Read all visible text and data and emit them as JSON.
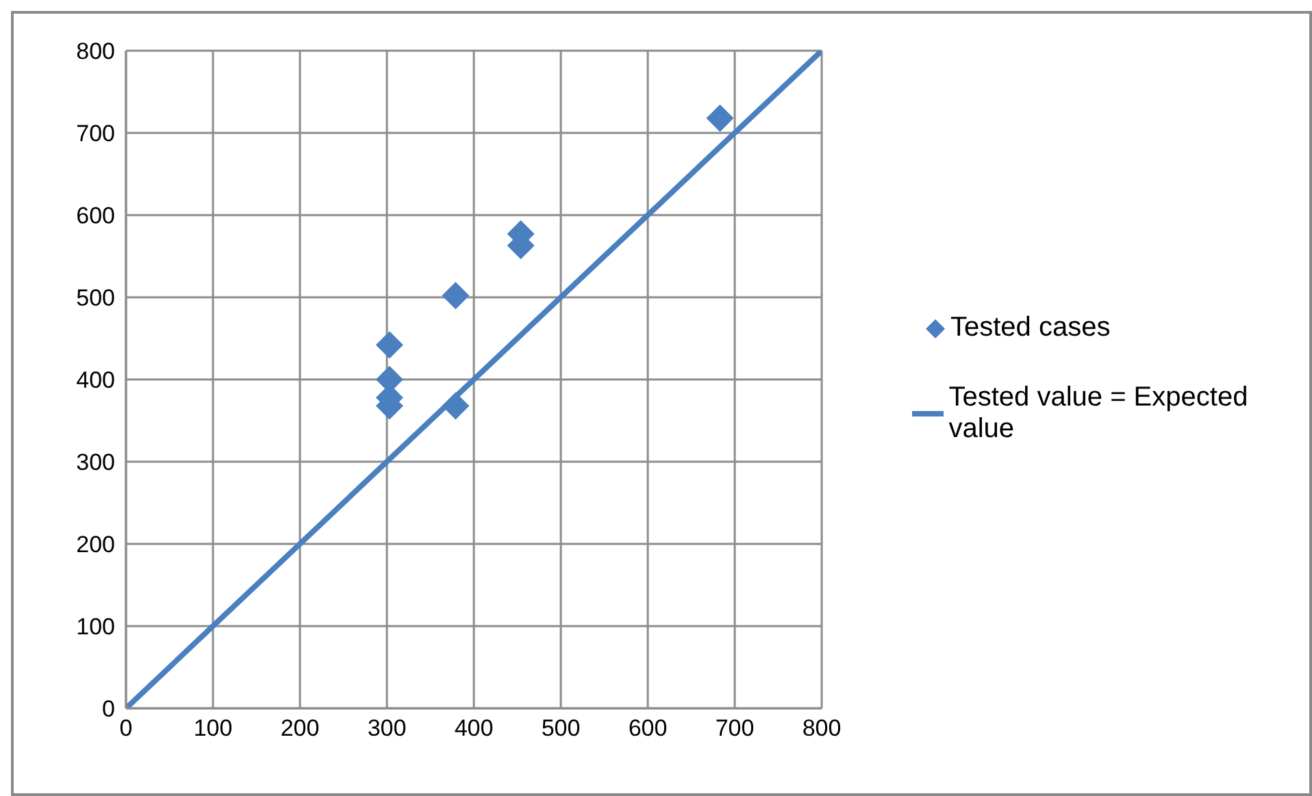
{
  "chart_data": {
    "type": "scatter",
    "xlim": [
      0,
      800
    ],
    "ylim": [
      0,
      800
    ],
    "xticks": [
      0,
      100,
      200,
      300,
      400,
      500,
      600,
      700,
      800
    ],
    "yticks": [
      0,
      100,
      200,
      300,
      400,
      500,
      600,
      700,
      800
    ],
    "grid": true,
    "legend": "right",
    "series": [
      {
        "name": "Tested cases",
        "color": "#4a7fc0",
        "marker": "diamond",
        "x": [
          303,
          303,
          303,
          303,
          379,
          379,
          454,
          454,
          683
        ],
        "values": [
          442,
          400,
          378,
          368,
          502,
          368,
          577,
          563,
          718
        ]
      },
      {
        "name": "Tested value = Expected value",
        "type": "line",
        "color": "#4a7fc0",
        "marker": "none",
        "x": [
          0,
          800
        ],
        "values": [
          0,
          800
        ]
      }
    ]
  }
}
